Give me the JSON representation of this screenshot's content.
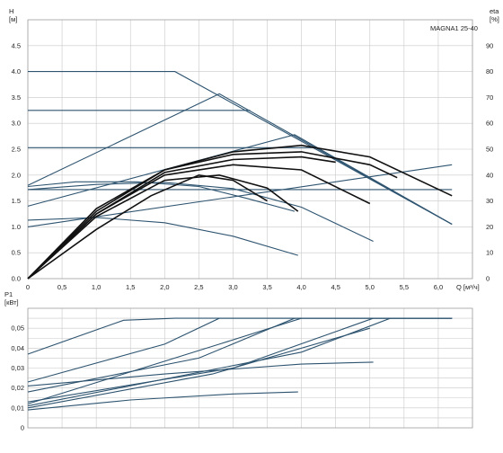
{
  "chart_data": [
    {
      "type": "line",
      "title": "MAGNA1 25-40",
      "xlabel": "Q [м³/ч]",
      "ylabel": "H [м]",
      "ylabel_right": "eta [%]",
      "ylim": [
        0,
        5
      ],
      "xlim": [
        0,
        6.5
      ],
      "ylim_right": [
        0,
        100
      ],
      "xticks": [
        "0",
        "0,5",
        "1,0",
        "1,5",
        "2,0",
        "2,5",
        "3,0",
        "3,5",
        "4,0",
        "4,5",
        "5,0",
        "5,5",
        "6,0"
      ],
      "yticks": [
        "0.0",
        "0.5",
        "1.0",
        "1.5",
        "2.0",
        "2.5",
        "3.0",
        "3.5",
        "4.0",
        "4.5"
      ],
      "yticks_right": [
        "0",
        "10",
        "20",
        "30",
        "40",
        "50",
        "60",
        "70",
        "80",
        "90"
      ],
      "grid": true,
      "series": [
        {
          "role": "head",
          "x": [
            0,
            2.15,
            6.2
          ],
          "y": [
            4.0,
            4.0,
            1.05
          ]
        },
        {
          "role": "head",
          "x": [
            0,
            3.25
          ],
          "y": [
            3.25,
            3.25
          ]
        },
        {
          "role": "head",
          "x": [
            0,
            4.2
          ],
          "y": [
            2.53,
            2.53
          ]
        },
        {
          "role": "head",
          "x": [
            0,
            6.2
          ],
          "y": [
            1.72,
            1.72
          ]
        },
        {
          "role": "head",
          "x": [
            0,
            2.8,
            6.2
          ],
          "y": [
            1.8,
            3.57,
            1.05
          ]
        },
        {
          "role": "head",
          "x": [
            0,
            3.9,
            6.2
          ],
          "y": [
            1.4,
            2.78,
            1.05
          ]
        },
        {
          "role": "head",
          "x": [
            0,
            6.2
          ],
          "y": [
            1.0,
            2.2
          ]
        },
        {
          "role": "head",
          "x": [
            0,
            0.7,
            1.6,
            2.5,
            3.2,
            3.9
          ],
          "y": [
            1.78,
            1.87,
            1.87,
            1.78,
            1.55,
            1.3
          ]
        },
        {
          "role": "head",
          "x": [
            0,
            1.0,
            2.0,
            3.0,
            4.0,
            5.05
          ],
          "y": [
            1.72,
            1.82,
            1.86,
            1.74,
            1.38,
            0.72
          ]
        },
        {
          "role": "head",
          "x": [
            0,
            1.0,
            2.0,
            3.0,
            3.95
          ],
          "y": [
            1.13,
            1.18,
            1.08,
            0.82,
            0.45
          ]
        },
        {
          "role": "eta",
          "x": [
            0,
            1.0,
            2.0,
            3.0,
            4.0,
            5.0,
            6.2
          ],
          "y": [
            0,
            27,
            42,
            49,
            51.5,
            47,
            32
          ]
        },
        {
          "role": "eta",
          "x": [
            0,
            1.0,
            2.0,
            3.0,
            4.0,
            5.0,
            5.4
          ],
          "y": [
            0,
            26,
            42,
            48,
            49,
            44,
            39
          ]
        },
        {
          "role": "eta",
          "x": [
            0,
            1.0,
            2.0,
            3.0,
            4.0,
            4.5
          ],
          "y": [
            0,
            25,
            41,
            46,
            47,
            45
          ]
        },
        {
          "role": "eta",
          "x": [
            0,
            1.0,
            2.0,
            3.0,
            4.0,
            5.0
          ],
          "y": [
            0,
            25,
            40,
            44,
            42,
            29
          ]
        },
        {
          "role": "eta",
          "x": [
            0,
            1.0,
            2.0,
            2.8,
            3.5,
            3.95
          ],
          "y": [
            0,
            24,
            38,
            40,
            35,
            26
          ]
        },
        {
          "role": "eta",
          "x": [
            0,
            1.0,
            1.8,
            2.5,
            3.0,
            3.5
          ],
          "y": [
            0,
            19,
            32,
            40,
            38,
            30
          ]
        }
      ]
    },
    {
      "type": "line",
      "ylabel": "P1 [кВт]",
      "ylim": [
        0,
        0.06
      ],
      "xlim": [
        0,
        6.5
      ],
      "yticks": [
        "0",
        "0,01",
        "0,02",
        "0,03",
        "0,04",
        "0,05"
      ],
      "grid": true,
      "series": [
        {
          "x": [
            0,
            1.4,
            2.15,
            6.2
          ],
          "y": [
            0.037,
            0.054,
            0.055,
            0.055
          ]
        },
        {
          "x": [
            0,
            2.0,
            2.8,
            6.2
          ],
          "y": [
            0.023,
            0.042,
            0.055,
            0.055
          ]
        },
        {
          "x": [
            0,
            2.5,
            3.9,
            6.2
          ],
          "y": [
            0.018,
            0.035,
            0.055,
            0.055
          ]
        },
        {
          "x": [
            0,
            3.0,
            5.05,
            6.2
          ],
          "y": [
            0.013,
            0.03,
            0.055,
            0.055
          ]
        },
        {
          "x": [
            0,
            4.0,
            5.3,
            6.2
          ],
          "y": [
            0.011,
            0.038,
            0.055,
            0.055
          ]
        },
        {
          "x": [
            0,
            2.8,
            4.0,
            6.2
          ],
          "y": [
            0.012,
            0.042,
            0.055,
            0.055
          ]
        },
        {
          "x": [
            0,
            2.7,
            5.0
          ],
          "y": [
            0.01,
            0.027,
            0.05
          ]
        },
        {
          "x": [
            0,
            2.0,
            4.0,
            5.05
          ],
          "y": [
            0.021,
            0.027,
            0.032,
            0.033
          ]
        },
        {
          "x": [
            0,
            1.5,
            3.0,
            3.95
          ],
          "y": [
            0.009,
            0.014,
            0.017,
            0.018
          ]
        }
      ]
    }
  ]
}
